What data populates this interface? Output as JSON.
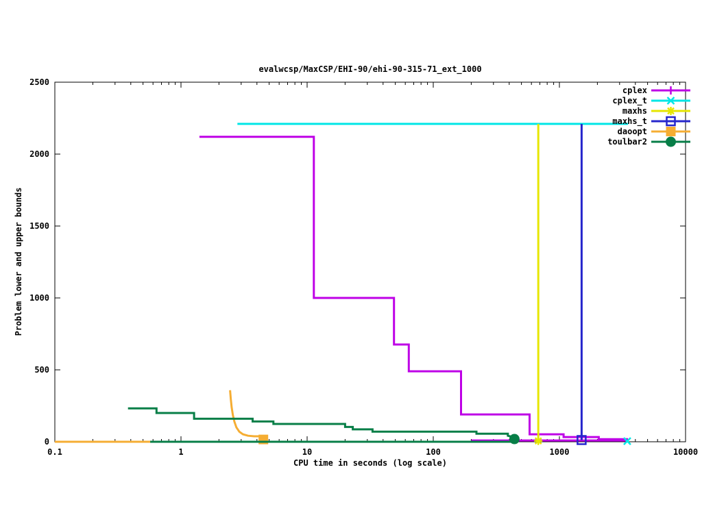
{
  "chart_data": {
    "type": "line",
    "title": "evalwcsp/MaxCSP/EHI-90/ehi-90-315-71_ext_1000",
    "xlabel": "CPU time in seconds (log scale)",
    "ylabel": "Problem lower and upper bounds",
    "x_scale": "log",
    "xlim": [
      0.1,
      10000
    ],
    "ylim": [
      0,
      2500
    ],
    "x_ticks": [
      "0.1",
      "1",
      "10",
      "100",
      "1000",
      "10000"
    ],
    "y_ticks": [
      "0",
      "500",
      "1000",
      "1500",
      "2000",
      "2500"
    ],
    "grid": false,
    "legend_position": "top-right",
    "series": [
      {
        "name": "cplex",
        "color": "#be00e6",
        "marker": "plus",
        "lines": [
          {
            "role": "upper-bound",
            "points": [
              [
                1.4,
                2120
              ],
              [
                11.3,
                2120
              ],
              [
                11.3,
                1000
              ],
              [
                48.8,
                1000
              ],
              [
                48.8,
                676
              ],
              [
                64,
                676
              ],
              [
                64,
                490
              ],
              [
                166,
                490
              ],
              [
                166,
                190
              ],
              [
                580,
                190
              ],
              [
                580,
                52
              ],
              [
                1080,
                52
              ],
              [
                1080,
                33
              ],
              [
                2050,
                33
              ],
              [
                2050,
                18
              ],
              [
                3500,
                18
              ]
            ]
          },
          {
            "role": "lower-bound",
            "points": [
              [
                200,
                9
              ],
              [
                3500,
                9
              ]
            ]
          }
        ],
        "markers_at": []
      },
      {
        "name": "cplex_t",
        "color": "#00e6e6",
        "marker": "cross",
        "lines": [
          {
            "role": "upper-bound",
            "points": [
              [
                2.8,
                2210
              ],
              [
                3500,
                2210
              ]
            ]
          }
        ],
        "markers_at": [
          [
            3450,
            4
          ]
        ]
      },
      {
        "name": "maxhs",
        "color": "#e6e600",
        "marker": "star",
        "lines": [
          {
            "role": "upper-bound",
            "points": [
              [
                680,
                2210
              ],
              [
                680,
                6
              ]
            ]
          }
        ],
        "markers_at": [
          [
            680,
            6
          ]
        ]
      },
      {
        "name": "maxhs_t",
        "color": "#2626cc",
        "marker": "square-open",
        "lines": [
          {
            "role": "upper-bound",
            "points": [
              [
                1500,
                2210
              ],
              [
                1500,
                12
              ]
            ]
          }
        ],
        "markers_at": [
          [
            1500,
            12
          ]
        ]
      },
      {
        "name": "daoopt",
        "color": "#f5ad33",
        "marker": "square-filled",
        "lines": [
          {
            "role": "lower-bound",
            "points": [
              [
                0.1,
                0
              ],
              [
                4.5,
                0
              ]
            ]
          },
          {
            "role": "upper-bound",
            "points": [
              [
                2.45,
                358
              ],
              [
                2.48,
                300
              ],
              [
                2.52,
                240
              ],
              [
                2.58,
                185
              ],
              [
                2.65,
                140
              ],
              [
                2.75,
                100
              ],
              [
                2.9,
                70
              ],
              [
                3.1,
                52
              ],
              [
                3.4,
                42
              ],
              [
                3.8,
                38
              ],
              [
                4.5,
                38
              ]
            ]
          }
        ],
        "markers_at": [
          [
            4.5,
            16
          ]
        ]
      },
      {
        "name": "toulbar2",
        "color": "#077e47",
        "marker": "circle-filled",
        "lines": [
          {
            "role": "lower-bound",
            "points": [
              [
                0.57,
                0
              ],
              [
                440,
                0
              ]
            ]
          },
          {
            "role": "upper-bound",
            "points": [
              [
                0.38,
                232
              ],
              [
                0.64,
                232
              ],
              [
                0.64,
                200
              ],
              [
                1.27,
                200
              ],
              [
                1.27,
                160
              ],
              [
                3.7,
                160
              ],
              [
                3.7,
                141
              ],
              [
                5.4,
                141
              ],
              [
                5.4,
                124
              ],
              [
                20,
                124
              ],
              [
                20,
                103
              ],
              [
                23,
                103
              ],
              [
                23,
                86
              ],
              [
                33,
                86
              ],
              [
                33,
                70
              ],
              [
                220,
                70
              ],
              [
                220,
                56
              ],
              [
                390,
                56
              ],
              [
                390,
                42
              ],
              [
                440,
                30
              ]
            ]
          }
        ],
        "markers_at": [
          [
            440,
            19
          ]
        ]
      }
    ]
  }
}
